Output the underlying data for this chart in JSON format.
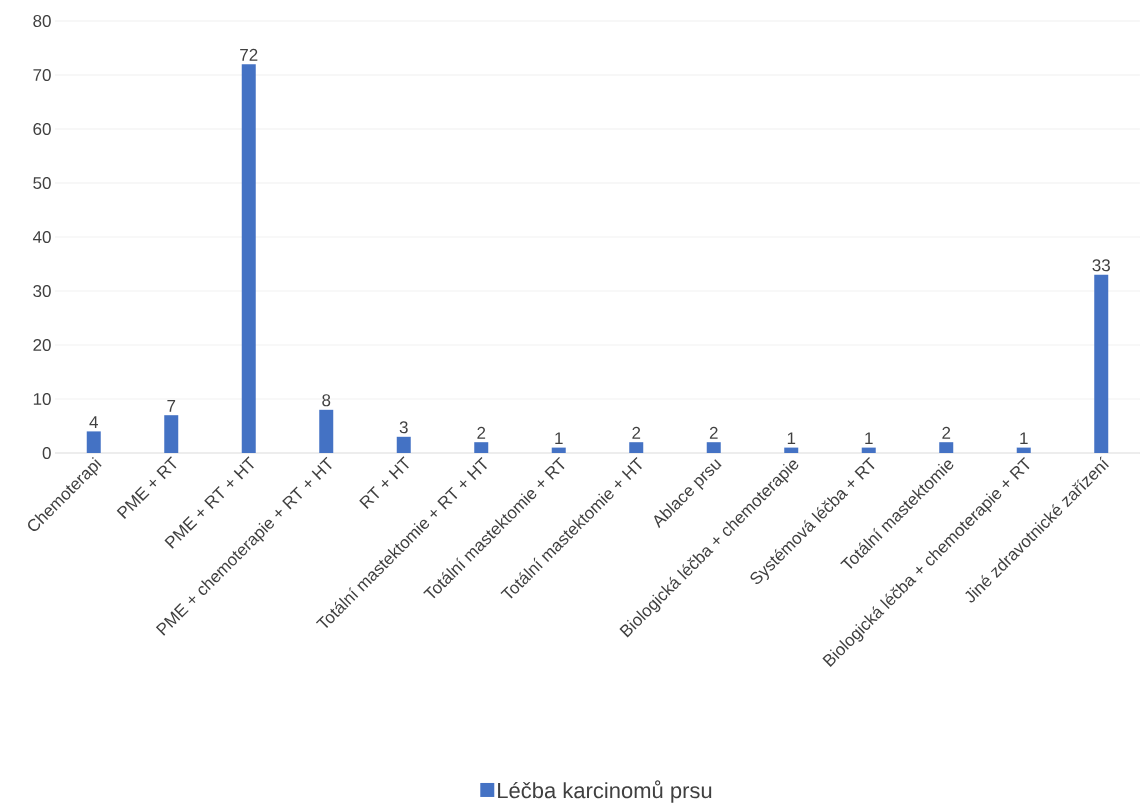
{
  "chart_data": {
    "type": "bar",
    "categories": [
      "Chemoterapi",
      "PME + RT",
      "PME + RT + HT",
      "PME + chemoterapie + RT + HT",
      "RT + HT",
      "Totální mastektomie + RT + HT",
      "Totální mastektomie + RT",
      "Totální mastektomie + HT",
      "Ablace prsu",
      "Biologická léčba + chemoterapie",
      "Systémová léčba + RT",
      "Totální mastektomie",
      "Biologická léčba + chemoterapie + RT",
      "Jiné zdravotnické zařízení"
    ],
    "series": [
      {
        "name": "Léčba karcinomů prsu",
        "color": "#4472c4",
        "values": [
          4,
          7,
          72,
          8,
          3,
          2,
          1,
          2,
          2,
          1,
          1,
          2,
          1,
          33
        ]
      }
    ],
    "ylim": [
      0,
      80
    ],
    "yticks": [
      0,
      10,
      20,
      30,
      40,
      50,
      60,
      70,
      80
    ],
    "grid": "y",
    "legend": "bottom",
    "data_labels": true
  }
}
